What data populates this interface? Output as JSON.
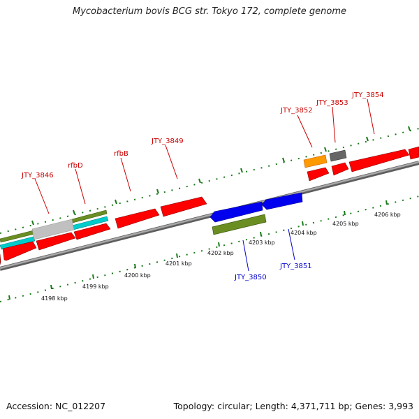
{
  "title": "Mycobacterium bovis BCG str. Tokyo 172, complete genome",
  "footer": {
    "accession": "Accession: NC_012207",
    "summary": "Topology: circular; Length: 4,371,711 bp; Genes: 3,993"
  },
  "colors": {
    "background": "#ffffff",
    "backbone": "#8a8a8a",
    "cds": "#ff0000",
    "forward_label": "#cc0000",
    "reverse_label": "#0000cc",
    "reverse_cds": "#0000ee",
    "ruler_tick": "#1a7a1a",
    "feature_olive": "#6b8e23",
    "feature_cyan": "#00cccc",
    "feature_gray": "#c0c0c0",
    "feature_orange": "#ff9900",
    "feature_darkgray": "#666666"
  },
  "ruler_labels": [
    "4198 kbp",
    "4199 kbp",
    "4200 kbp",
    "4201 kbp",
    "4202 kbp",
    "4203 kbp",
    "4204 kbp",
    "4205 kbp",
    "4206 kbp"
  ],
  "forward_gene_labels": [
    "JTY_3846",
    "rfbD",
    "rfbB",
    "JTY_3849",
    "JTY_3852",
    "JTY_3853",
    "JTY_3854"
  ],
  "reverse_gene_labels": [
    "JTY_3850",
    "JTY_3851"
  ]
}
